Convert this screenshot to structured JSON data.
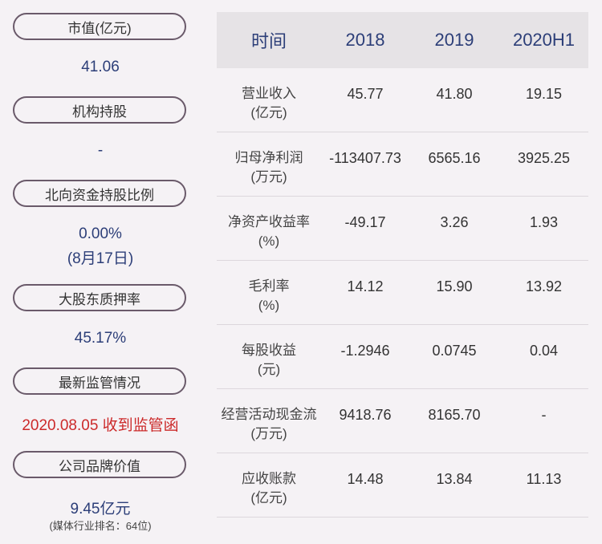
{
  "left_panel": [
    {
      "label": "市值(亿元)",
      "value": "41.06"
    },
    {
      "label": "机构持股",
      "value": "-"
    },
    {
      "label": "北向资金持股比例",
      "value": "0.00%",
      "value2": "(8月17日)"
    },
    {
      "label": "大股东质押率",
      "value": "45.17%"
    },
    {
      "label": "最新监管情况",
      "value": "2020.08.05 收到监管函"
    },
    {
      "label": "公司品牌价值",
      "value": "9.45亿元",
      "note": "(媒体行业排名：64位)"
    }
  ],
  "table": {
    "headers": [
      "时间",
      "2018",
      "2019",
      "2020H1"
    ],
    "rows": [
      {
        "label1": "营业收入",
        "label2": "(亿元)",
        "values": [
          "45.77",
          "41.80",
          "19.15"
        ]
      },
      {
        "label1": "归母净利润",
        "label2": "(万元)",
        "values": [
          "-113407.73",
          "6565.16",
          "3925.25"
        ]
      },
      {
        "label1": "净资产收益率",
        "label2": "(%)",
        "values": [
          "-49.17",
          "3.26",
          "1.93"
        ]
      },
      {
        "label1": "毛利率",
        "label2": "(%)",
        "values": [
          "14.12",
          "15.90",
          "13.92"
        ]
      },
      {
        "label1": "每股收益",
        "label2": "(元)",
        "values": [
          "-1.2946",
          "0.0745",
          "0.04"
        ]
      },
      {
        "label1": "经营活动现金流",
        "label2": "(万元)",
        "values": [
          "9418.76",
          "8165.70",
          "-"
        ]
      },
      {
        "label1": "应收账款",
        "label2": "(亿元)",
        "values": [
          "14.48",
          "13.84",
          "11.13"
        ]
      }
    ]
  },
  "colors": {
    "value_blue": "#2c3e78",
    "alert_red": "#cc2a2a",
    "pill_border": "#6a5a6a",
    "header_bg": "#e6e3e6"
  }
}
